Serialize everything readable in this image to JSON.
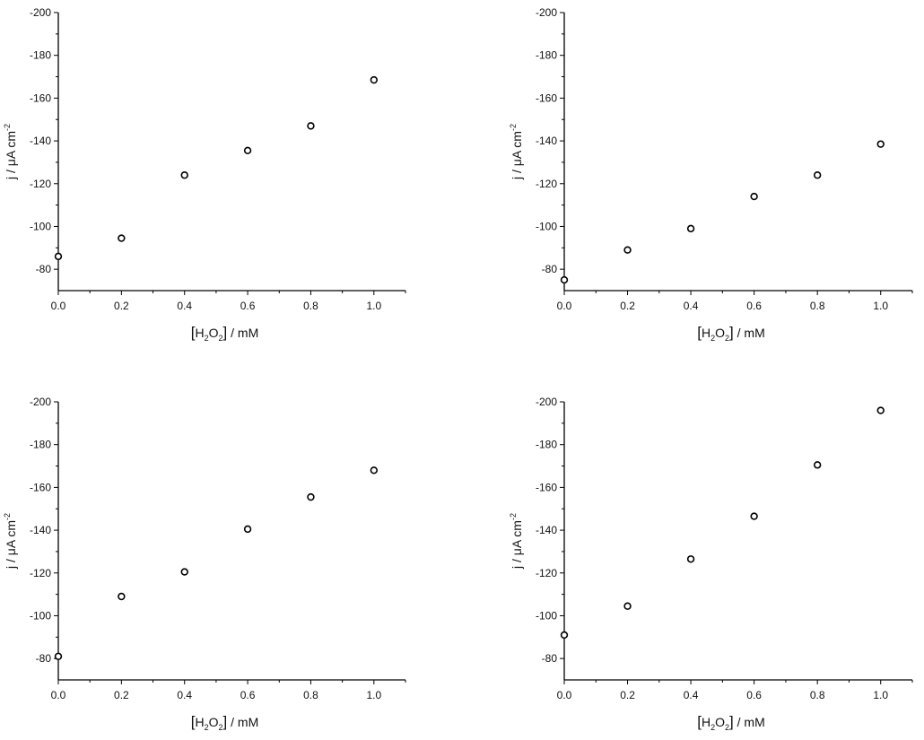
{
  "chart_data": [
    {
      "type": "scatter",
      "title": "",
      "x": [
        0.0,
        0.2,
        0.4,
        0.6,
        0.8,
        1.0
      ],
      "series": [
        {
          "values": [
            -86,
            -94.5,
            -124,
            -135.5,
            -147,
            -168.5
          ]
        }
      ],
      "xlabel": {
        "bracket_open": "[",
        "main": "H",
        "sub1": "2",
        "mid": "O",
        "sub2": "2",
        "bracket_close": "]",
        "suffix": " / mM"
      },
      "ylabel": {
        "prefix": "j / μA cm",
        "sup": "-2"
      },
      "xlim": [
        0,
        1.1
      ],
      "ylim": [
        -70,
        -200
      ],
      "xticks": [
        "0.0",
        "0.2",
        "0.4",
        "0.6",
        "0.8",
        "1.0"
      ],
      "yticks": [
        "-80",
        "-100",
        "-120",
        "-140",
        "-160",
        "-180",
        "-200"
      ],
      "grid": false,
      "legend": "none"
    },
    {
      "type": "scatter",
      "title": "",
      "x": [
        0.0,
        0.2,
        0.4,
        0.6,
        0.8,
        1.0
      ],
      "series": [
        {
          "values": [
            -75,
            -89,
            -99,
            -114,
            -124,
            -138.5
          ]
        }
      ],
      "xlabel": {
        "bracket_open": "[",
        "main": "H",
        "sub1": "2",
        "mid": "O",
        "sub2": "2",
        "bracket_close": "]",
        "suffix": " / mM"
      },
      "ylabel": {
        "prefix": "j / μA cm",
        "sup": "-2"
      },
      "xlim": [
        0,
        1.1
      ],
      "ylim": [
        -70,
        -200
      ],
      "xticks": [
        "0.0",
        "0.2",
        "0.4",
        "0.6",
        "0.8",
        "1.0"
      ],
      "yticks": [
        "-80",
        "-100",
        "-120",
        "-140",
        "-160",
        "-180",
        "-200"
      ],
      "grid": false,
      "legend": "none"
    },
    {
      "type": "scatter",
      "title": "",
      "x": [
        0.0,
        0.2,
        0.4,
        0.6,
        0.8,
        1.0
      ],
      "series": [
        {
          "values": [
            -81,
            -109,
            -120.5,
            -140.5,
            -155.5,
            -168
          ]
        }
      ],
      "xlabel": {
        "bracket_open": "[",
        "main": "H",
        "sub1": "2",
        "mid": "O",
        "sub2": "2",
        "bracket_close": "]",
        "suffix": " / mM"
      },
      "ylabel": {
        "prefix": "j / μA cm",
        "sup": "-2"
      },
      "xlim": [
        0,
        1.1
      ],
      "ylim": [
        -70,
        -200
      ],
      "xticks": [
        "0.0",
        "0.2",
        "0.4",
        "0.6",
        "0.8",
        "1.0"
      ],
      "yticks": [
        "-80",
        "-100",
        "-120",
        "-140",
        "-160",
        "-180",
        "-200"
      ],
      "grid": false,
      "legend": "none"
    },
    {
      "type": "scatter",
      "title": "",
      "x": [
        0.0,
        0.2,
        0.4,
        0.6,
        0.8,
        1.0
      ],
      "series": [
        {
          "values": [
            -91,
            -104.5,
            -126.5,
            -146.5,
            -170.5,
            -196
          ]
        }
      ],
      "xlabel": {
        "bracket_open": "[",
        "main": "H",
        "sub1": "2",
        "mid": "O",
        "sub2": "2",
        "bracket_close": "]",
        "suffix": " / mM"
      },
      "ylabel": {
        "prefix": "j / μA cm",
        "sup": "-2"
      },
      "xlim": [
        0,
        1.1
      ],
      "ylim": [
        -70,
        -200
      ],
      "xticks": [
        "0.0",
        "0.2",
        "0.4",
        "0.6",
        "0.8",
        "1.0"
      ],
      "yticks": [
        "-80",
        "-100",
        "-120",
        "-140",
        "-160",
        "-180",
        "-200"
      ],
      "grid": false,
      "legend": "none"
    }
  ]
}
